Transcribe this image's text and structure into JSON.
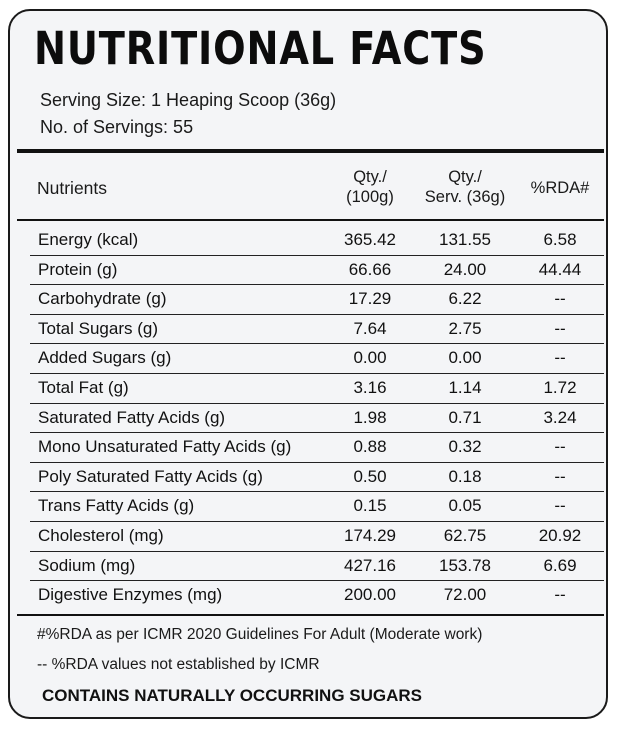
{
  "title": "NUTRITIONAL FACTS",
  "serving_size": "Serving Size: 1 Heaping Scoop (36g)",
  "servings": "No. of Servings: 55",
  "headers": {
    "nutrients": "Nutrients",
    "qty100_line1": "Qty./",
    "qty100_line2": "(100g)",
    "qtyserv_line1": "Qty./",
    "qtyserv_line2": "Serv. (36g)",
    "rda": "%RDA#"
  },
  "rows": [
    {
      "name": "Energy (kcal)",
      "per100": "365.42",
      "perServ": "131.55",
      "rda": "6.58"
    },
    {
      "name": "Protein (g)",
      "per100": "66.66",
      "perServ": "24.00",
      "rda": "44.44"
    },
    {
      "name": "Carbohydrate (g)",
      "per100": "17.29",
      "perServ": "6.22",
      "rda": "--"
    },
    {
      "name": "Total Sugars (g)",
      "per100": "7.64",
      "perServ": "2.75",
      "rda": "--"
    },
    {
      "name": "Added Sugars (g)",
      "per100": "0.00",
      "perServ": "0.00",
      "rda": "--"
    },
    {
      "name": "Total Fat (g)",
      "per100": "3.16",
      "perServ": "1.14",
      "rda": "1.72"
    },
    {
      "name": "Saturated Fatty Acids (g)",
      "per100": "1.98",
      "perServ": "0.71",
      "rda": "3.24"
    },
    {
      "name": "Mono Unsaturated Fatty Acids (g)",
      "per100": "0.88",
      "perServ": "0.32",
      "rda": "--"
    },
    {
      "name": "Poly Saturated Fatty Acids (g)",
      "per100": "0.50",
      "perServ": "0.18",
      "rda": "--"
    },
    {
      "name": "Trans Fatty Acids (g)",
      "per100": "0.15",
      "perServ": "0.05",
      "rda": "--"
    },
    {
      "name": "Cholesterol (mg)",
      "per100": "174.29",
      "perServ": "62.75",
      "rda": "20.92"
    },
    {
      "name": "Sodium (mg)",
      "per100": "427.16",
      "perServ": "153.78",
      "rda": "6.69"
    },
    {
      "name": "Digestive Enzymes (mg)",
      "per100": "200.00",
      "perServ": "72.00",
      "rda": "--"
    }
  ],
  "footnotes": [
    "#%RDA as per ICMR 2020 Guidelines For Adult (Moderate work)",
    "-- %RDA values not established by ICMR"
  ],
  "contains": "CONTAINS NATURALLY OCCURRING SUGARS"
}
